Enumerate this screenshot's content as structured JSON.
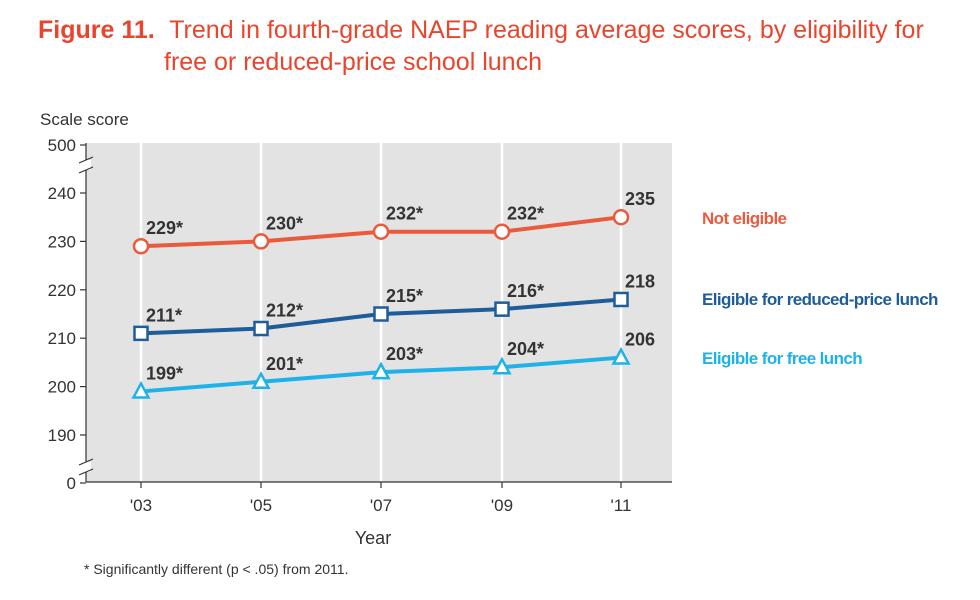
{
  "figure": {
    "label": "Figure 11.",
    "title_line1": "Trend in fourth-grade NAEP reading average scores, by eligibility for",
    "title_line2": "free or reduced-price school lunch"
  },
  "footnote": "* Significantly different (p < .05) from 2011.",
  "chart_data": {
    "type": "line",
    "ylabel": "Scale score",
    "xlabel": "Year",
    "categories": [
      "'03",
      "'05",
      "'07",
      "'09",
      "'11"
    ],
    "y_ticks": [
      "500",
      "240",
      "230",
      "220",
      "210",
      "200",
      "190",
      "0"
    ],
    "ylim": [
      185,
      245
    ],
    "axis_breaks": true,
    "grid": false,
    "legend": "right",
    "series": [
      {
        "name": "Not eligible",
        "values": [
          229,
          230,
          232,
          232,
          235
        ],
        "labels": [
          "229*",
          "230*",
          "232*",
          "232*",
          "235"
        ],
        "color": "#ea5a3d",
        "marker": "circle"
      },
      {
        "name": "Eligible for reduced-price lunch",
        "values": [
          211,
          212,
          215,
          216,
          218
        ],
        "labels": [
          "211*",
          "212*",
          "215*",
          "216*",
          "218"
        ],
        "color": "#1f5c9a",
        "marker": "square"
      },
      {
        "name": "Eligible for free lunch",
        "values": [
          199,
          201,
          203,
          204,
          206
        ],
        "labels": [
          "199*",
          "201*",
          "203*",
          "204*",
          "206"
        ],
        "color": "#1fb2e8",
        "marker": "triangle"
      }
    ]
  }
}
